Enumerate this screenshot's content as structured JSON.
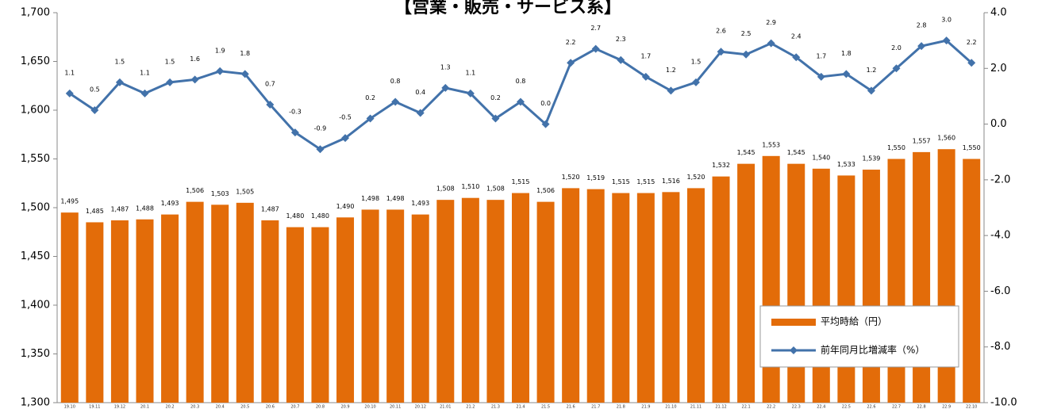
{
  "chart_data": {
    "type": "bar_line",
    "title": "【営業・販売・サービス系】",
    "categories": [
      "19.10",
      "19.11",
      "19.12",
      "20.1",
      "20.2",
      "20.3",
      "20.4",
      "20.5",
      "20.6",
      "20.7",
      "20.8",
      "20.9",
      "20.10",
      "20.11",
      "20.12",
      "21.01",
      "21.2",
      "21.3",
      "21.4",
      "21.5",
      "21.6",
      "21.7",
      "21.8",
      "21.9",
      "21.10",
      "21.11",
      "21.12",
      "22.1",
      "22.2",
      "22.3",
      "22.4",
      "22.5",
      "22.6",
      "22.7",
      "22.8",
      "22.9",
      "22.10"
    ],
    "series": [
      {
        "name": "平均時給（円）",
        "type": "bar",
        "color": "#e36c09",
        "values": [
          1495,
          1485,
          1487,
          1488,
          1493,
          1506,
          1503,
          1505,
          1487,
          1480,
          1480,
          1490,
          1498,
          1498,
          1493,
          1508,
          1510,
          1508,
          1515,
          1506,
          1520,
          1519,
          1515,
          1515,
          1516,
          1520,
          1532,
          1545,
          1553,
          1545,
          1540,
          1533,
          1539,
          1550,
          1557,
          1560,
          1550
        ],
        "value_labels": [
          "1,495",
          "1,485",
          "1,487",
          "1,488",
          "1,493",
          "1,506",
          "1,503",
          "1,505",
          "1,487",
          "1,480",
          "1,480",
          "1,490",
          "1,498",
          "1,498",
          "1,493",
          "1,508",
          "1,510",
          "1,508",
          "1,515",
          "1,506",
          "1,520",
          "1,519",
          "1,515",
          "1,515",
          "1,516",
          "1,520",
          "1,532",
          "1,545",
          "1,553",
          "1,545",
          "1,540",
          "1,533",
          "1,539",
          "1,550",
          "1,557",
          "1,560",
          "1,550"
        ]
      },
      {
        "name": "前年同月比増減率（%）",
        "type": "line",
        "axis": "y2",
        "color": "#4272aa",
        "negative_label_color": "#ff0000",
        "values": [
          1.1,
          0.5,
          1.5,
          1.1,
          1.5,
          1.6,
          1.9,
          1.8,
          0.7,
          -0.3,
          -0.9,
          -0.5,
          0.2,
          0.8,
          0.4,
          1.3,
          1.1,
          0.2,
          0.8,
          0.0,
          2.2,
          2.7,
          2.3,
          1.7,
          1.2,
          1.5,
          2.6,
          2.5,
          2.9,
          2.4,
          1.7,
          1.8,
          1.2,
          2.0,
          2.8,
          3.0,
          2.2
        ],
        "value_labels": [
          "1.1",
          "0.5",
          "1.5",
          "1.1",
          "1.5",
          "1.6",
          "1.9",
          "1.8",
          "0.7",
          "-0.3",
          "-0.9",
          "-0.5",
          "0.2",
          "0.8",
          "0.4",
          "1.3",
          "1.1",
          "0.2",
          "0.8",
          "0.0",
          "2.2",
          "2.7",
          "2.3",
          "1.7",
          "1.2",
          "1.5",
          "2.6",
          "2.5",
          "2.9",
          "2.4",
          "1.7",
          "1.8",
          "1.2",
          "2.0",
          "2.8",
          "3.0",
          "2.2"
        ]
      }
    ],
    "ylim": [
      1300,
      1700
    ],
    "yticks": [
      {
        "value": 1300,
        "label": "1,300"
      },
      {
        "value": 1350,
        "label": "1,350"
      },
      {
        "value": 1400,
        "label": "1,400"
      },
      {
        "value": 1450,
        "label": "1,450"
      },
      {
        "value": 1500,
        "label": "1,500"
      },
      {
        "value": 1550,
        "label": "1,550"
      },
      {
        "value": 1600,
        "label": "1,600"
      },
      {
        "value": 1650,
        "label": "1,650"
      },
      {
        "value": 1700,
        "label": "1,700"
      }
    ],
    "y2lim": [
      -10,
      4
    ],
    "y2ticks": [
      {
        "value": 4,
        "label": "4.0"
      },
      {
        "value": 2,
        "label": "2.0"
      },
      {
        "value": 0,
        "label": "0.0"
      },
      {
        "value": -2,
        "label": "-2.0"
      },
      {
        "value": -4,
        "label": "-4.0"
      },
      {
        "value": -6,
        "label": "-6.0"
      },
      {
        "value": -8,
        "label": "-8.0"
      },
      {
        "value": -10,
        "label": "-10.0"
      }
    ],
    "grid": false,
    "legend": "lower right"
  }
}
